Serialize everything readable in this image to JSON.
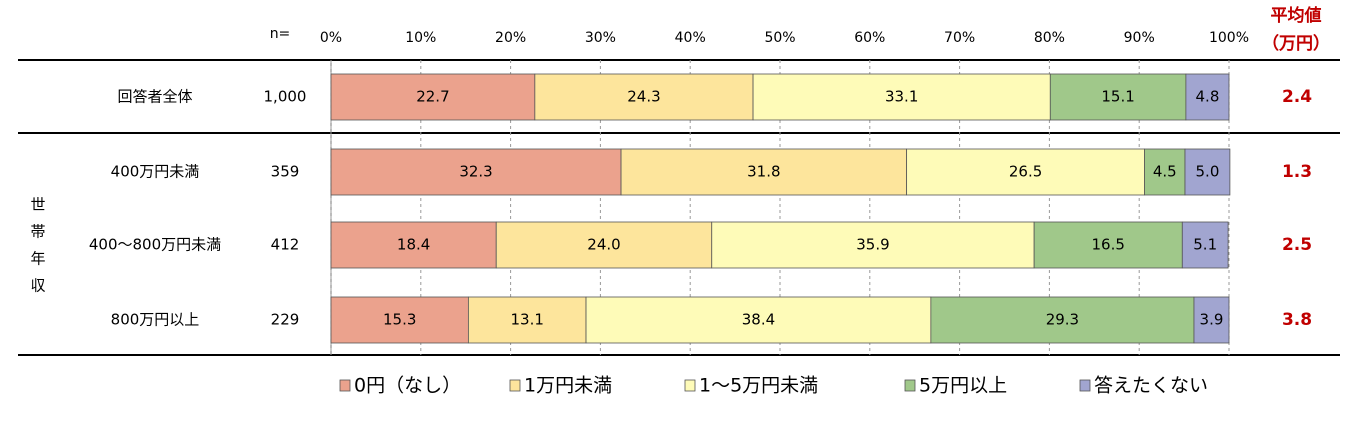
{
  "chart_data": {
    "type": "stacked-bar",
    "n_header": "n=",
    "average_header": [
      "平均値",
      "（万円）"
    ],
    "group_label": [
      "世",
      "帯",
      "年",
      "収"
    ],
    "categories": [
      "回答者全体",
      "400万円未満",
      "400～800万円未満",
      "800万円以上"
    ],
    "n": [
      "1,000",
      "359",
      "412",
      "229"
    ],
    "averages": [
      2.4,
      1.3,
      2.5,
      3.8
    ],
    "xlim": [
      0,
      100
    ],
    "xticks": [
      {
        "value": 0,
        "label": "0%"
      },
      {
        "value": 10,
        "label": "10%"
      },
      {
        "value": 20,
        "label": "20%"
      },
      {
        "value": 30,
        "label": "30%"
      },
      {
        "value": 40,
        "label": "40%"
      },
      {
        "value": 50,
        "label": "50%"
      },
      {
        "value": 60,
        "label": "60%"
      },
      {
        "value": 70,
        "label": "70%"
      },
      {
        "value": 80,
        "label": "80%"
      },
      {
        "value": 90,
        "label": "90%"
      },
      {
        "value": 100,
        "label": "100%"
      }
    ],
    "grid": true,
    "series": [
      {
        "name": "0円（なし）",
        "color": "#eba28d",
        "values": [
          22.7,
          32.3,
          18.4,
          15.3
        ]
      },
      {
        "name": "1万円未満",
        "color": "#fde59c",
        "values": [
          24.3,
          31.8,
          24.0,
          13.1
        ],
        "value_labels": [
          "24.3",
          "31.8",
          "24.0",
          "13.1"
        ]
      },
      {
        "name": "1～5万円未満",
        "color": "#fefbb8",
        "values": [
          33.1,
          26.5,
          35.9,
          38.4
        ]
      },
      {
        "name": "5万円以上",
        "color": "#a0c88a",
        "values": [
          15.1,
          4.5,
          16.5,
          29.3
        ]
      },
      {
        "name": "答えたくない",
        "color": "#a1a5d0",
        "values": [
          4.8,
          5.0,
          5.1,
          3.9
        ],
        "value_labels": [
          "4.8",
          "5.0",
          "5.1",
          "3.9"
        ]
      }
    ]
  }
}
